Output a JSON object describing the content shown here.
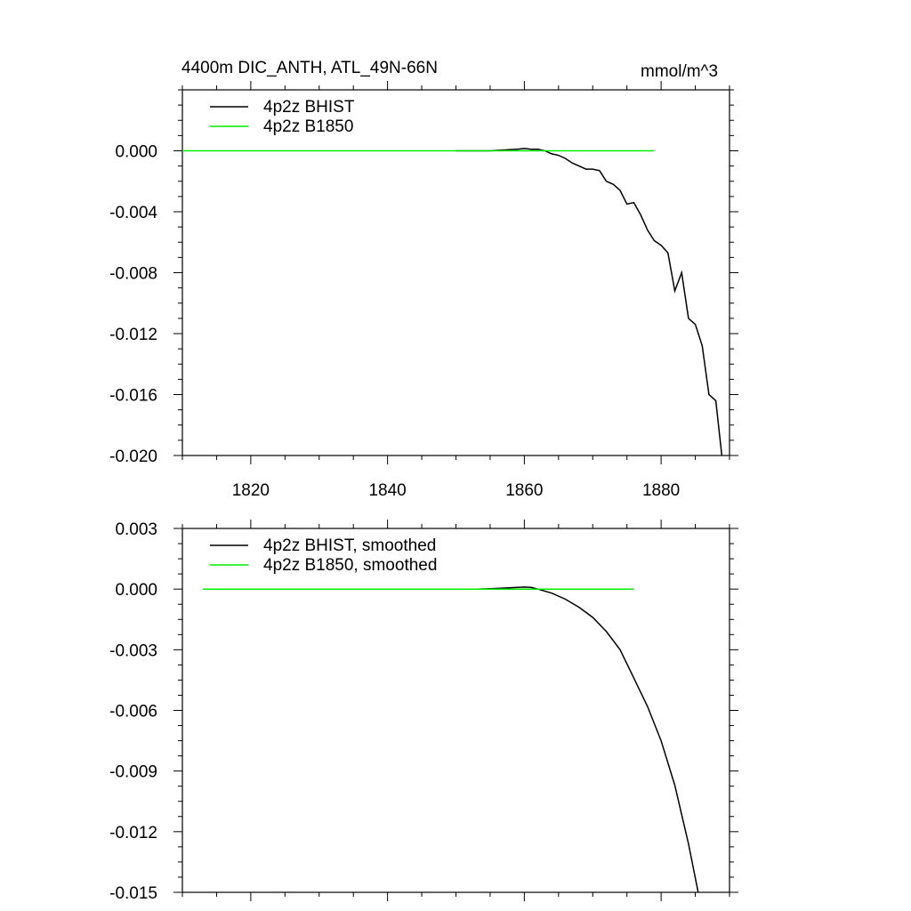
{
  "title_left": "4400m DIC_ANTH, ATL_49N-66N",
  "title_right": "mmol/m^3",
  "colors": {
    "bhist": "#000000",
    "b1850": "#00ee00",
    "axis": "#000000"
  },
  "chart_data": [
    {
      "type": "line",
      "xlim": [
        1810,
        1890
      ],
      "ylim": [
        -0.02,
        0.004
      ],
      "x_ticks": [
        1820,
        1840,
        1860,
        1880
      ],
      "x_tick_labels": [
        "1820",
        "1840",
        "1860",
        "1880"
      ],
      "y_ticks": [
        0.0,
        -0.004,
        -0.008,
        -0.012,
        -0.016,
        -0.02
      ],
      "y_tick_labels": [
        "0.000",
        "-0.004",
        "-0.008",
        "-0.012",
        "-0.016",
        "-0.020"
      ],
      "grid": false,
      "legend": "top-left",
      "series": [
        {
          "name": "4p2z BHIST",
          "color": "#000000",
          "x": [
            1850,
            1851,
            1852,
            1853,
            1854,
            1855,
            1856,
            1857,
            1858,
            1859,
            1860,
            1861,
            1862,
            1863,
            1864,
            1865,
            1866,
            1867,
            1868,
            1869,
            1870,
            1871,
            1872,
            1873,
            1874,
            1875,
            1876,
            1877,
            1878,
            1879,
            1880,
            1881,
            1882,
            1883,
            1884,
            1885,
            1886,
            1887,
            1888,
            1889,
            1890
          ],
          "y": [
            0.0,
            0.0,
            0.0,
            0.0,
            0.0,
            0.0,
            3e-05,
            5e-05,
            8e-05,
            0.0001,
            0.00015,
            0.0001,
            0.0001,
            0.0,
            -0.0002,
            -0.0003,
            -0.0005,
            -0.0008,
            -0.001,
            -0.0012,
            -0.0012,
            -0.0013,
            -0.002,
            -0.0022,
            -0.0026,
            -0.0035,
            -0.0034,
            -0.0042,
            -0.0052,
            -0.0059,
            -0.0062,
            -0.0067,
            -0.0092,
            -0.008,
            -0.011,
            -0.0114,
            -0.0128,
            -0.016,
            -0.0164,
            -0.0205,
            -0.022
          ]
        },
        {
          "name": "4p2z B1850",
          "color": "#00ee00",
          "x": [
            1810,
            1879
          ],
          "y": [
            0.0,
            0.0
          ]
        }
      ]
    },
    {
      "type": "line",
      "xlim": [
        1810,
        1890
      ],
      "ylim": [
        -0.015,
        0.003
      ],
      "x_ticks": [
        1820,
        1840,
        1860,
        1880
      ],
      "x_tick_labels": [
        "",
        "",
        "",
        ""
      ],
      "y_ticks": [
        0.003,
        0.0,
        -0.003,
        -0.006,
        -0.009,
        -0.012,
        -0.015
      ],
      "y_tick_labels": [
        "0.003",
        "0.000",
        "-0.003",
        "-0.006",
        "-0.009",
        "-0.012",
        "-0.015"
      ],
      "grid": false,
      "legend": "top-left",
      "series": [
        {
          "name": "4p2z BHIST, smoothed",
          "color": "#000000",
          "x": [
            1853,
            1855,
            1857,
            1859,
            1860,
            1861,
            1862,
            1864,
            1866,
            1868,
            1870,
            1872,
            1874,
            1876,
            1878,
            1880,
            1882,
            1884,
            1886,
            1887
          ],
          "y": [
            0.0,
            2e-05,
            5e-05,
            8e-05,
            0.0001,
            8e-05,
            0.0,
            -0.0002,
            -0.0005,
            -0.0009,
            -0.0014,
            -0.0021,
            -0.003,
            -0.0044,
            -0.0058,
            -0.0075,
            -0.0097,
            -0.0126,
            -0.016,
            -0.0178
          ]
        },
        {
          "name": "4p2z B1850, smoothed",
          "color": "#00ee00",
          "x": [
            1813,
            1876
          ],
          "y": [
            0.0,
            0.0
          ]
        }
      ]
    }
  ]
}
